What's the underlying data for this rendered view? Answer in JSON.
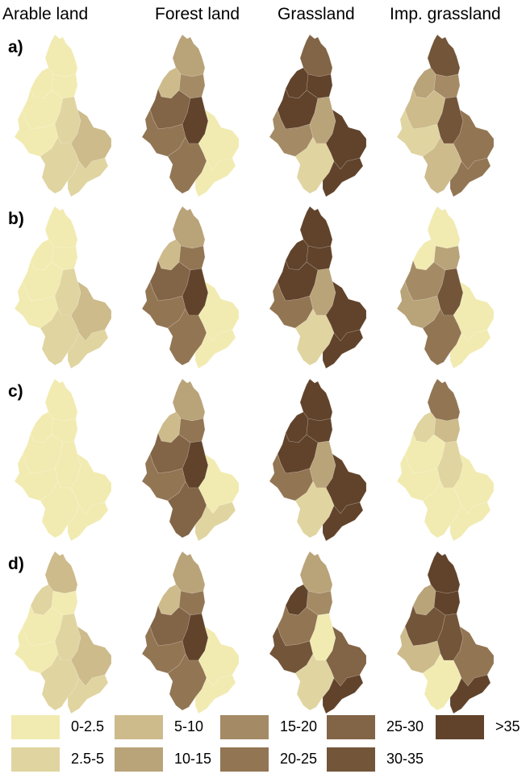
{
  "columns": [
    "Arable land",
    "Forest land",
    "Grassland",
    "Imp. grassland"
  ],
  "rows": [
    "a)",
    "b)",
    "c)",
    "d)"
  ],
  "legend": [
    {
      "label": "0-2.5",
      "color": "#f1ebb1"
    },
    {
      "label": "2.5-5",
      "color": "#e0d4a0"
    },
    {
      "label": "5-10",
      "color": "#cdbb8c"
    },
    {
      "label": "10-15",
      "color": "#b9a379"
    },
    {
      "label": "15-20",
      "color": "#a48b66"
    },
    {
      "label": "20-25",
      "color": "#927553"
    },
    {
      "label": "25-30",
      "color": "#826446"
    },
    {
      "label": "30-35",
      "color": "#735539"
    },
    {
      "label": ">35",
      "color": "#61432b"
    }
  ],
  "maps": [
    {
      "row": "a)",
      "column": "Arable land",
      "subbasin_classes": [
        "0-2.5",
        "0-2.5",
        "0-2.5",
        "0-2.5",
        "0-2.5",
        "2.5-5",
        "5-10",
        "2.5-5",
        "2.5-5"
      ]
    },
    {
      "row": "a)",
      "column": "Forest land",
      "subbasin_classes": [
        "10-15",
        "5-10",
        "15-20",
        "25-30",
        "20-25",
        ">35",
        "0-2.5",
        "20-25",
        "0-2.5"
      ]
    },
    {
      "row": "a)",
      "column": "Grassland",
      "subbasin_classes": [
        "25-30",
        ">35",
        ">35",
        ">35",
        "15-20",
        "10-15",
        ">35",
        "2.5-5",
        ">35"
      ]
    },
    {
      "row": "a)",
      "column": "Imp. grassland",
      "subbasin_classes": [
        "30-35",
        "10-15",
        "15-20",
        "5-10",
        "2.5-5",
        "30-35",
        "20-25",
        "5-10",
        "20-25"
      ]
    },
    {
      "row": "b)",
      "column": "Arable land",
      "subbasin_classes": [
        "0-2.5",
        "0-2.5",
        "0-2.5",
        "0-2.5",
        "0-2.5",
        "2.5-5",
        "5-10",
        "2.5-5",
        "2.5-5"
      ]
    },
    {
      "row": "b)",
      "column": "Forest land",
      "subbasin_classes": [
        "10-15",
        "5-10",
        "20-25",
        "25-30",
        "20-25",
        ">35",
        "0-2.5",
        "20-25",
        "0-2.5"
      ]
    },
    {
      "row": "b)",
      "column": "Grassland",
      "subbasin_classes": [
        ">35",
        ">35",
        ">35",
        ">35",
        "20-25",
        "10-15",
        ">35",
        "2.5-5",
        ">35"
      ]
    },
    {
      "row": "b)",
      "column": "Imp. grassland",
      "subbasin_classes": [
        "0-2.5",
        "0-2.5",
        "10-15",
        "15-20",
        "10-15",
        "30-35",
        "0-2.5",
        "20-25",
        "0-2.5"
      ]
    },
    {
      "row": "c)",
      "column": "Arable land",
      "subbasin_classes": [
        "0-2.5",
        "0-2.5",
        "0-2.5",
        "0-2.5",
        "0-2.5",
        "0-2.5",
        "0-2.5",
        "0-2.5",
        "0-2.5"
      ]
    },
    {
      "row": "c)",
      "column": "Forest land",
      "subbasin_classes": [
        "10-15",
        "5-10",
        "20-25",
        "25-30",
        "20-25",
        ">35",
        "0-2.5",
        "25-30",
        "2.5-5"
      ]
    },
    {
      "row": "c)",
      "column": "Grassland",
      "subbasin_classes": [
        ">35",
        ">35",
        ">35",
        ">35",
        "20-25",
        "10-15",
        ">35",
        "2.5-5",
        ">35"
      ]
    },
    {
      "row": "c)",
      "column": "Imp. grassland",
      "subbasin_classes": [
        "20-25",
        "2.5-5",
        "5-10",
        "0-2.5",
        "0-2.5",
        "2.5-5",
        "0-2.5",
        "0-2.5",
        "0-2.5"
      ]
    },
    {
      "row": "d)",
      "column": "Arable land",
      "subbasin_classes": [
        "5-10",
        "2.5-5",
        "0-2.5",
        "0-2.5",
        "0-2.5",
        "2.5-5",
        "5-10",
        "2.5-5",
        "2.5-5"
      ]
    },
    {
      "row": "d)",
      "column": "Forest land",
      "subbasin_classes": [
        "10-15",
        "5-10",
        "20-25",
        "25-30",
        "20-25",
        ">35",
        "0-2.5",
        "20-25",
        "0-2.5"
      ]
    },
    {
      "row": "d)",
      "column": "Grassland",
      "subbasin_classes": [
        "10-15",
        ">35",
        "15-20",
        "20-25",
        "30-35",
        "0-2.5",
        "25-30",
        "2.5-5",
        ">35"
      ]
    },
    {
      "row": "d)",
      "column": "Imp. grassland",
      "subbasin_classes": [
        ">35",
        "10-15",
        ">35",
        "30-35",
        "5-10",
        "30-35",
        "20-25",
        "0-2.5",
        ">35"
      ]
    }
  ]
}
